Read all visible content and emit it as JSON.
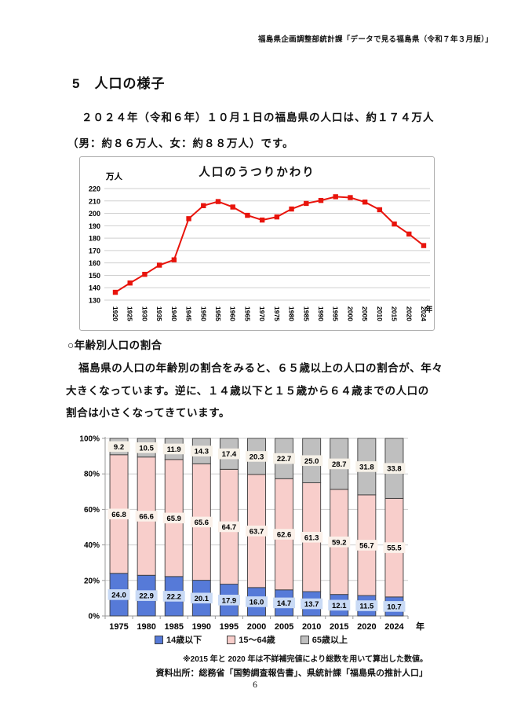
{
  "page": {
    "header": "福島県企画調整部統計課「データで見る福島県（令和７年３月版）」",
    "section_title": "5　人口の様子",
    "intro_line1": "２０２４年（令和６年）１０月１日の福島県の人口は、約１７４万人",
    "intro_line2": "（男：約８６万人、女：約８８万人）です。",
    "subsection_heading": "○年齢別人口の割合",
    "body_line1": "福島県の人口の年齢別の割合をみると、６５歳以上の人口の割合が、年々",
    "body_line2": "大きくなっています。逆に、１４歳以下と１５歳から６４歳までの人口の",
    "body_line3": "割合は小さくなってきています。",
    "footnote": "※2015 年と 2020 年は不詳補完値により総数を用いて算出した数値。",
    "source": "資料出所：総務省「国勢調査報告書」、県統計課「福島県の推計人口」",
    "page_number": "6"
  },
  "chart_data": [
    {
      "type": "line",
      "title": "人口のうつりかわり",
      "unit_label": "万人",
      "x_axis_label": "年",
      "x": [
        "1920",
        "1925",
        "1930",
        "1935",
        "1940",
        "1945",
        "1950",
        "1955",
        "1960",
        "1965",
        "1970",
        "1975",
        "1980",
        "1985",
        "1990",
        "1995",
        "2000",
        "2005",
        "2010",
        "2015",
        "2020",
        "2024"
      ],
      "values": [
        136.3,
        143.8,
        150.8,
        158.2,
        162.5,
        195.7,
        206.2,
        209.5,
        205.1,
        198.4,
        194.6,
        197.1,
        203.5,
        208.0,
        210.4,
        213.4,
        212.7,
        209.1,
        202.9,
        191.4,
        183.3,
        174.0
      ],
      "ylim": [
        130,
        220
      ],
      "y_ticks": [
        220,
        210,
        200,
        190,
        180,
        170,
        160,
        150,
        140,
        130
      ],
      "grid": true,
      "legend_position": "none",
      "line_color": "#e8140c",
      "marker": "square"
    },
    {
      "type": "bar",
      "stacked": true,
      "categories": [
        "1975",
        "1980",
        "1985",
        "1990",
        "1995",
        "2000",
        "2005",
        "2010",
        "2015",
        "2020",
        "2024"
      ],
      "x_axis_label": "年",
      "y_ticks": [
        "100%",
        "80%",
        "60%",
        "40%",
        "20%",
        "0%"
      ],
      "ylim": [
        0,
        100
      ],
      "grid": true,
      "legend_position": "bottom",
      "series": [
        {
          "name": "14歳以下",
          "color": "#567ad8",
          "label_bg": "#c9daf5",
          "values": [
            24.0,
            22.9,
            22.2,
            20.1,
            17.9,
            16.0,
            14.7,
            13.7,
            12.1,
            11.5,
            10.7
          ]
        },
        {
          "name": "15～64歳",
          "color": "#f8cecb",
          "label_bg": "#fbf1ea",
          "values": [
            66.8,
            66.6,
            65.9,
            65.6,
            64.7,
            63.7,
            62.6,
            61.3,
            59.2,
            56.7,
            55.5
          ]
        },
        {
          "name": "65歳以上",
          "color": "#bfbfbf",
          "label_bg": "#f6f1e8",
          "values": [
            9.2,
            10.5,
            11.9,
            14.3,
            17.4,
            20.3,
            22.7,
            25.0,
            28.7,
            31.8,
            33.8
          ]
        }
      ]
    }
  ]
}
